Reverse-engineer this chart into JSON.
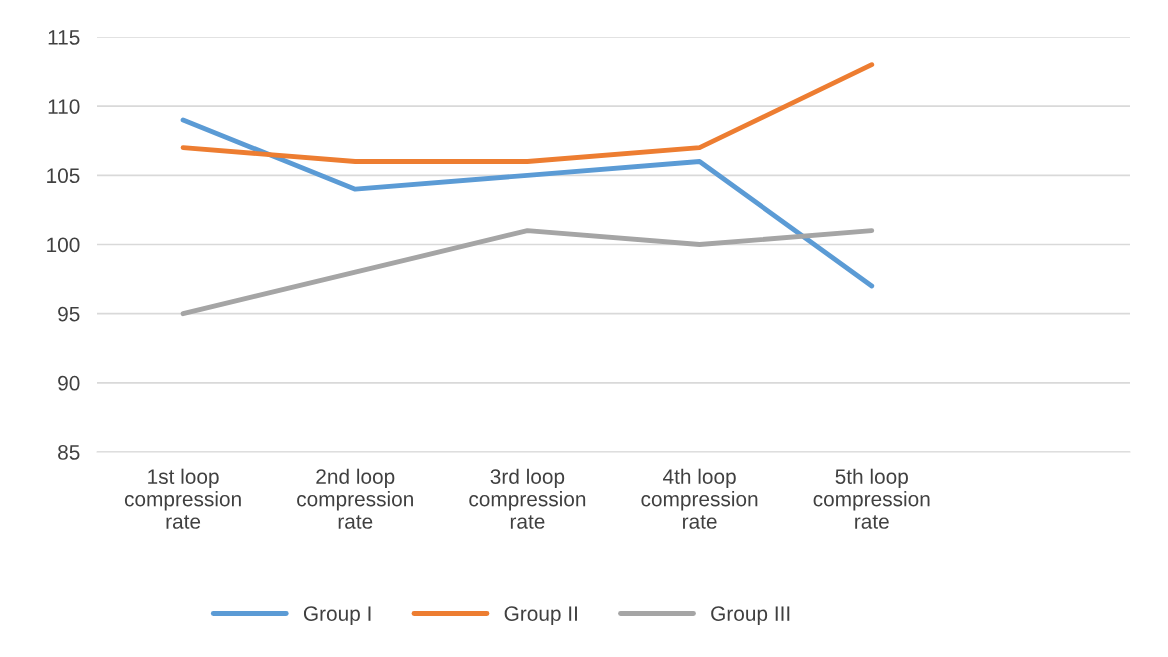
{
  "chart_data": {
    "type": "line",
    "categories": [
      "1st loop\ncompression\nrate",
      "2nd loop\ncompression\nrate",
      "3rd loop\ncompression\nrate",
      "4th loop\ncompression\nrate",
      "5th loop\ncompression\nrate",
      null
    ],
    "series": [
      {
        "name": "Group I",
        "color": "#5b9bd5",
        "values": [
          109,
          104,
          105,
          106,
          97,
          null
        ]
      },
      {
        "name": "Group II",
        "color": "#ed7d31",
        "values": [
          107,
          106,
          106,
          107,
          113,
          null
        ]
      },
      {
        "name": "Group III",
        "color": "#a5a5a5",
        "values": [
          95,
          98,
          101,
          100,
          101,
          null
        ]
      }
    ],
    "ylim": [
      85,
      115
    ],
    "yticks": [
      85,
      90,
      95,
      100,
      105,
      110,
      115
    ],
    "grid": "y",
    "legend": "bottom",
    "marker": "none",
    "line_style": "solid"
  }
}
